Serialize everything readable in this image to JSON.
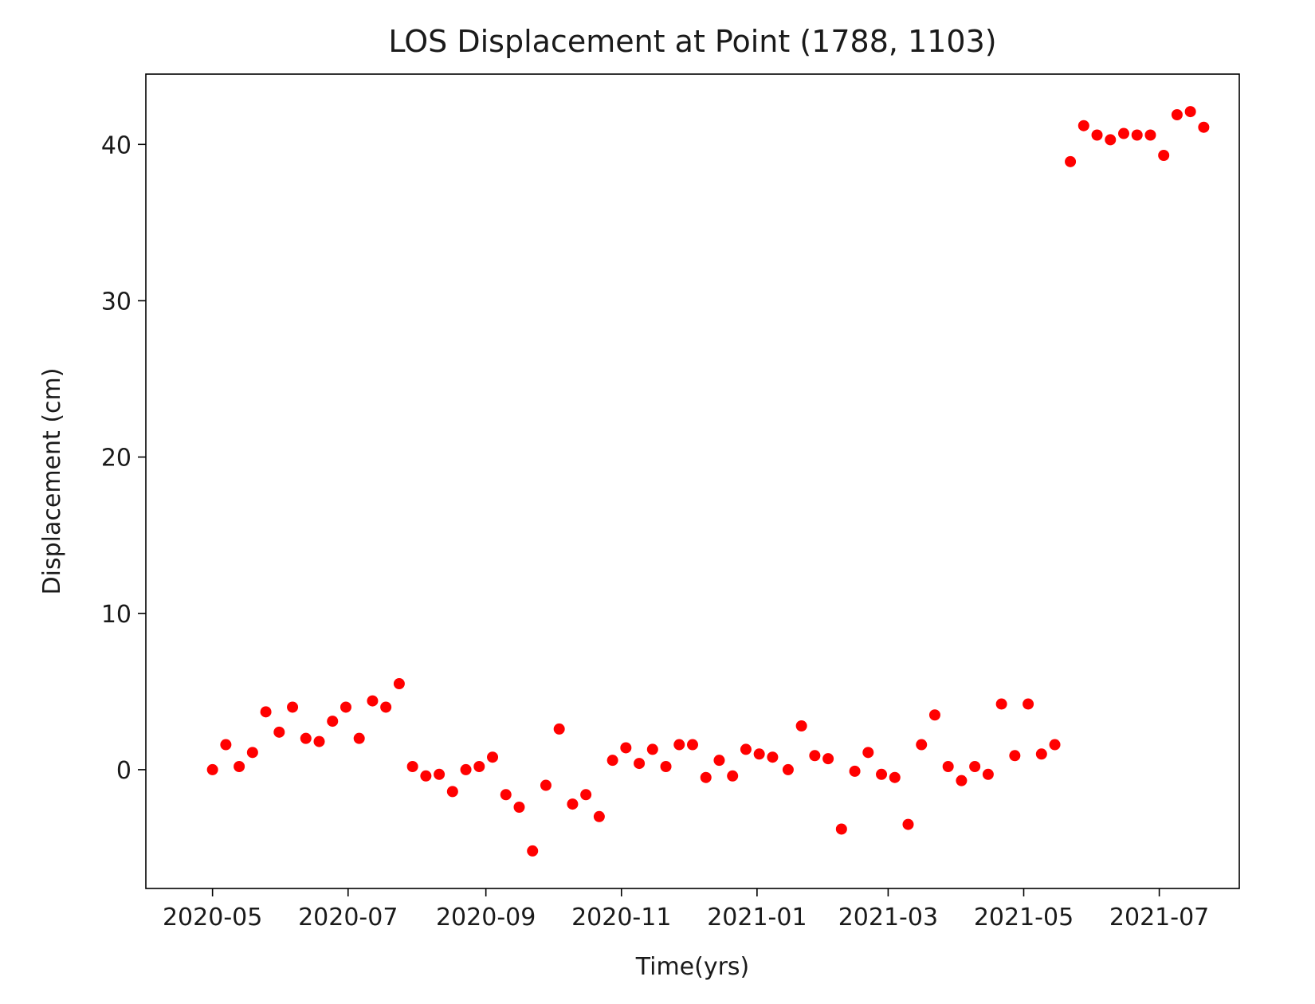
{
  "chart_data": {
    "type": "scatter",
    "title": "LOS Displacement at Point (1788, 1103)",
    "xlabel": "Time(yrs)",
    "ylabel": "Displacement (cm)",
    "xlim": [
      "2020-04-01",
      "2021-08-06"
    ],
    "ylim": [
      -7.6,
      44.5
    ],
    "grid": false,
    "marker_color": "#ff0000",
    "x_ticks": [
      "2020-05",
      "2020-07",
      "2020-09",
      "2020-11",
      "2021-01",
      "2021-03",
      "2021-05",
      "2021-07"
    ],
    "y_ticks": [
      0,
      10,
      20,
      30,
      40
    ],
    "points": [
      {
        "x": "2020-05-01",
        "y": 0.0
      },
      {
        "x": "2020-05-07",
        "y": 1.6
      },
      {
        "x": "2020-05-13",
        "y": 0.2
      },
      {
        "x": "2020-05-19",
        "y": 1.1
      },
      {
        "x": "2020-05-25",
        "y": 3.7
      },
      {
        "x": "2020-05-31",
        "y": 2.4
      },
      {
        "x": "2020-06-06",
        "y": 4.0
      },
      {
        "x": "2020-06-12",
        "y": 2.0
      },
      {
        "x": "2020-06-18",
        "y": 1.8
      },
      {
        "x": "2020-06-24",
        "y": 3.1
      },
      {
        "x": "2020-06-30",
        "y": 4.0
      },
      {
        "x": "2020-07-06",
        "y": 2.0
      },
      {
        "x": "2020-07-12",
        "y": 4.4
      },
      {
        "x": "2020-07-18",
        "y": 4.0
      },
      {
        "x": "2020-07-24",
        "y": 5.5
      },
      {
        "x": "2020-07-30",
        "y": 0.2
      },
      {
        "x": "2020-08-05",
        "y": -0.4
      },
      {
        "x": "2020-08-11",
        "y": -0.3
      },
      {
        "x": "2020-08-17",
        "y": -1.4
      },
      {
        "x": "2020-08-23",
        "y": 0.0
      },
      {
        "x": "2020-08-29",
        "y": 0.2
      },
      {
        "x": "2020-09-04",
        "y": 0.8
      },
      {
        "x": "2020-09-10",
        "y": -1.6
      },
      {
        "x": "2020-09-16",
        "y": -2.4
      },
      {
        "x": "2020-09-22",
        "y": -5.2
      },
      {
        "x": "2020-09-28",
        "y": -1.0
      },
      {
        "x": "2020-10-04",
        "y": 2.6
      },
      {
        "x": "2020-10-10",
        "y": -2.2
      },
      {
        "x": "2020-10-16",
        "y": -1.6
      },
      {
        "x": "2020-10-22",
        "y": -3.0
      },
      {
        "x": "2020-10-28",
        "y": 0.6
      },
      {
        "x": "2020-11-03",
        "y": 1.4
      },
      {
        "x": "2020-11-09",
        "y": 0.4
      },
      {
        "x": "2020-11-15",
        "y": 1.3
      },
      {
        "x": "2020-11-21",
        "y": 0.2
      },
      {
        "x": "2020-11-27",
        "y": 1.6
      },
      {
        "x": "2020-12-03",
        "y": 1.6
      },
      {
        "x": "2020-12-09",
        "y": -0.5
      },
      {
        "x": "2020-12-15",
        "y": 0.6
      },
      {
        "x": "2020-12-21",
        "y": -0.4
      },
      {
        "x": "2020-12-27",
        "y": 1.3
      },
      {
        "x": "2021-01-02",
        "y": 1.0
      },
      {
        "x": "2021-01-08",
        "y": 0.8
      },
      {
        "x": "2021-01-15",
        "y": 0.0
      },
      {
        "x": "2021-01-21",
        "y": 2.8
      },
      {
        "x": "2021-01-27",
        "y": 0.9
      },
      {
        "x": "2021-02-02",
        "y": 0.7
      },
      {
        "x": "2021-02-08",
        "y": -3.8
      },
      {
        "x": "2021-02-14",
        "y": -0.1
      },
      {
        "x": "2021-02-20",
        "y": 1.1
      },
      {
        "x": "2021-02-26",
        "y": -0.3
      },
      {
        "x": "2021-03-04",
        "y": -0.5
      },
      {
        "x": "2021-03-10",
        "y": -3.5
      },
      {
        "x": "2021-03-16",
        "y": 1.6
      },
      {
        "x": "2021-03-22",
        "y": 3.5
      },
      {
        "x": "2021-03-28",
        "y": 0.2
      },
      {
        "x": "2021-04-03",
        "y": -0.7
      },
      {
        "x": "2021-04-09",
        "y": 0.2
      },
      {
        "x": "2021-04-15",
        "y": -0.3
      },
      {
        "x": "2021-04-21",
        "y": 4.2
      },
      {
        "x": "2021-04-27",
        "y": 0.9
      },
      {
        "x": "2021-05-03",
        "y": 4.2
      },
      {
        "x": "2021-05-09",
        "y": 1.0
      },
      {
        "x": "2021-05-15",
        "y": 1.6
      },
      {
        "x": "2021-05-22",
        "y": 38.9
      },
      {
        "x": "2021-05-28",
        "y": 41.2
      },
      {
        "x": "2021-06-03",
        "y": 40.6
      },
      {
        "x": "2021-06-09",
        "y": 40.3
      },
      {
        "x": "2021-06-15",
        "y": 40.7
      },
      {
        "x": "2021-06-21",
        "y": 40.6
      },
      {
        "x": "2021-06-27",
        "y": 40.6
      },
      {
        "x": "2021-07-03",
        "y": 39.3
      },
      {
        "x": "2021-07-09",
        "y": 41.9
      },
      {
        "x": "2021-07-15",
        "y": 42.1
      },
      {
        "x": "2021-07-21",
        "y": 41.1
      }
    ]
  }
}
